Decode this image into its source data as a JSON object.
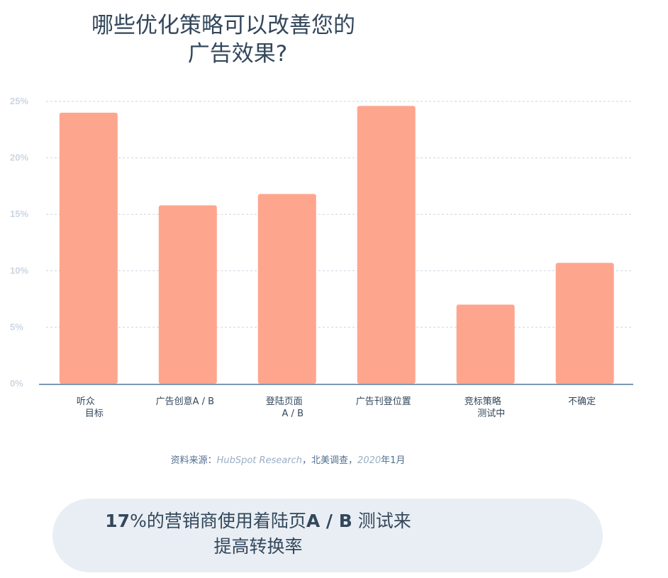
{
  "title_line1": "哪些优化策略可以改善您的",
  "title_line2": "广告效果?",
  "chart_data": {
    "type": "bar",
    "categories": [
      [
        "听众",
        "目标"
      ],
      [
        "广告创意A / B"
      ],
      [
        "登陆页面",
        "A / B"
      ],
      [
        "广告刊登位置"
      ],
      [
        "竞标策略",
        "测试中"
      ],
      [
        "不确定"
      ]
    ],
    "values": [
      24.0,
      15.8,
      16.8,
      24.6,
      7.0,
      10.7
    ],
    "yticks": [
      "0%",
      "5%",
      "10%",
      "15%",
      "20%",
      "25%"
    ],
    "ylim": [
      0,
      25
    ],
    "grid": true,
    "bar_color": "#fea58e",
    "axis_color": "#7c98b6",
    "title": "",
    "xlabel": "",
    "ylabel": ""
  },
  "source": {
    "prefix": "资料来源：",
    "org": "HubSpot Research",
    "mid": "，北美调查，",
    "year": "2020",
    "suffix": "年1月"
  },
  "callout": {
    "stat": "17",
    "text1": "%的营销商使用着陆页",
    "bold": "A / B",
    "text2": " 测试来",
    "line2": "提高转换率"
  }
}
